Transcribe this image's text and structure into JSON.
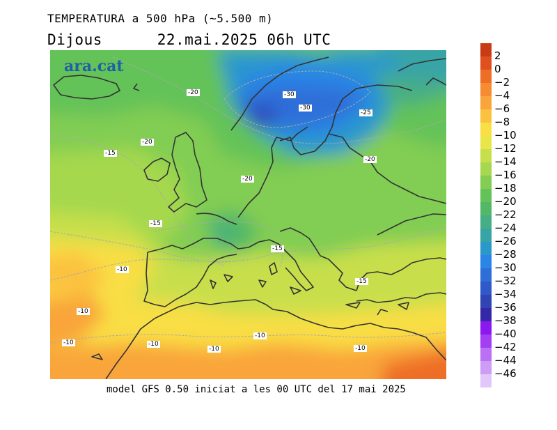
{
  "header": {
    "title": "TEMPERATURA a 500 hPa (~5.500 m)",
    "day": "Dijous",
    "datetime": "22.mai.2025 06h UTC"
  },
  "logo": "ara.cat",
  "footer": "model GFS 0.50 iniciat a les 00 UTC del 17 mai 2025",
  "contour_labels": [
    "-20",
    "-30",
    "-30",
    "-25",
    "-20",
    "-15",
    "-20",
    "-20",
    "-15",
    "-15",
    "-10",
    "-15",
    "-10",
    "-10",
    "-10",
    "-10",
    "-10",
    "-10"
  ],
  "legend": {
    "ticks": [
      "2",
      "0",
      "−2",
      "−4",
      "−6",
      "−8",
      "−10",
      "−12",
      "−14",
      "−16",
      "−18",
      "−20",
      "−22",
      "−24",
      "−26",
      "−28",
      "−30",
      "−32",
      "−34",
      "−36",
      "−38",
      "−40",
      "−42",
      "−44",
      "−46"
    ],
    "colors": [
      "#c83c14",
      "#e0501e",
      "#ee6e28",
      "#f58c32",
      "#f9a53a",
      "#fbc23f",
      "#f9de45",
      "#e9e64a",
      "#c8df4c",
      "#a5d84e",
      "#82cd52",
      "#63c258",
      "#52b868",
      "#46ae84",
      "#38a4a6",
      "#2b98cc",
      "#2a85e6",
      "#2e6ed8",
      "#2f58c8",
      "#3044b4",
      "#3428a8",
      "#8c18f0",
      "#a43ef4",
      "#b970f4",
      "#cc9cf6",
      "#e2c8fa"
    ]
  }
}
